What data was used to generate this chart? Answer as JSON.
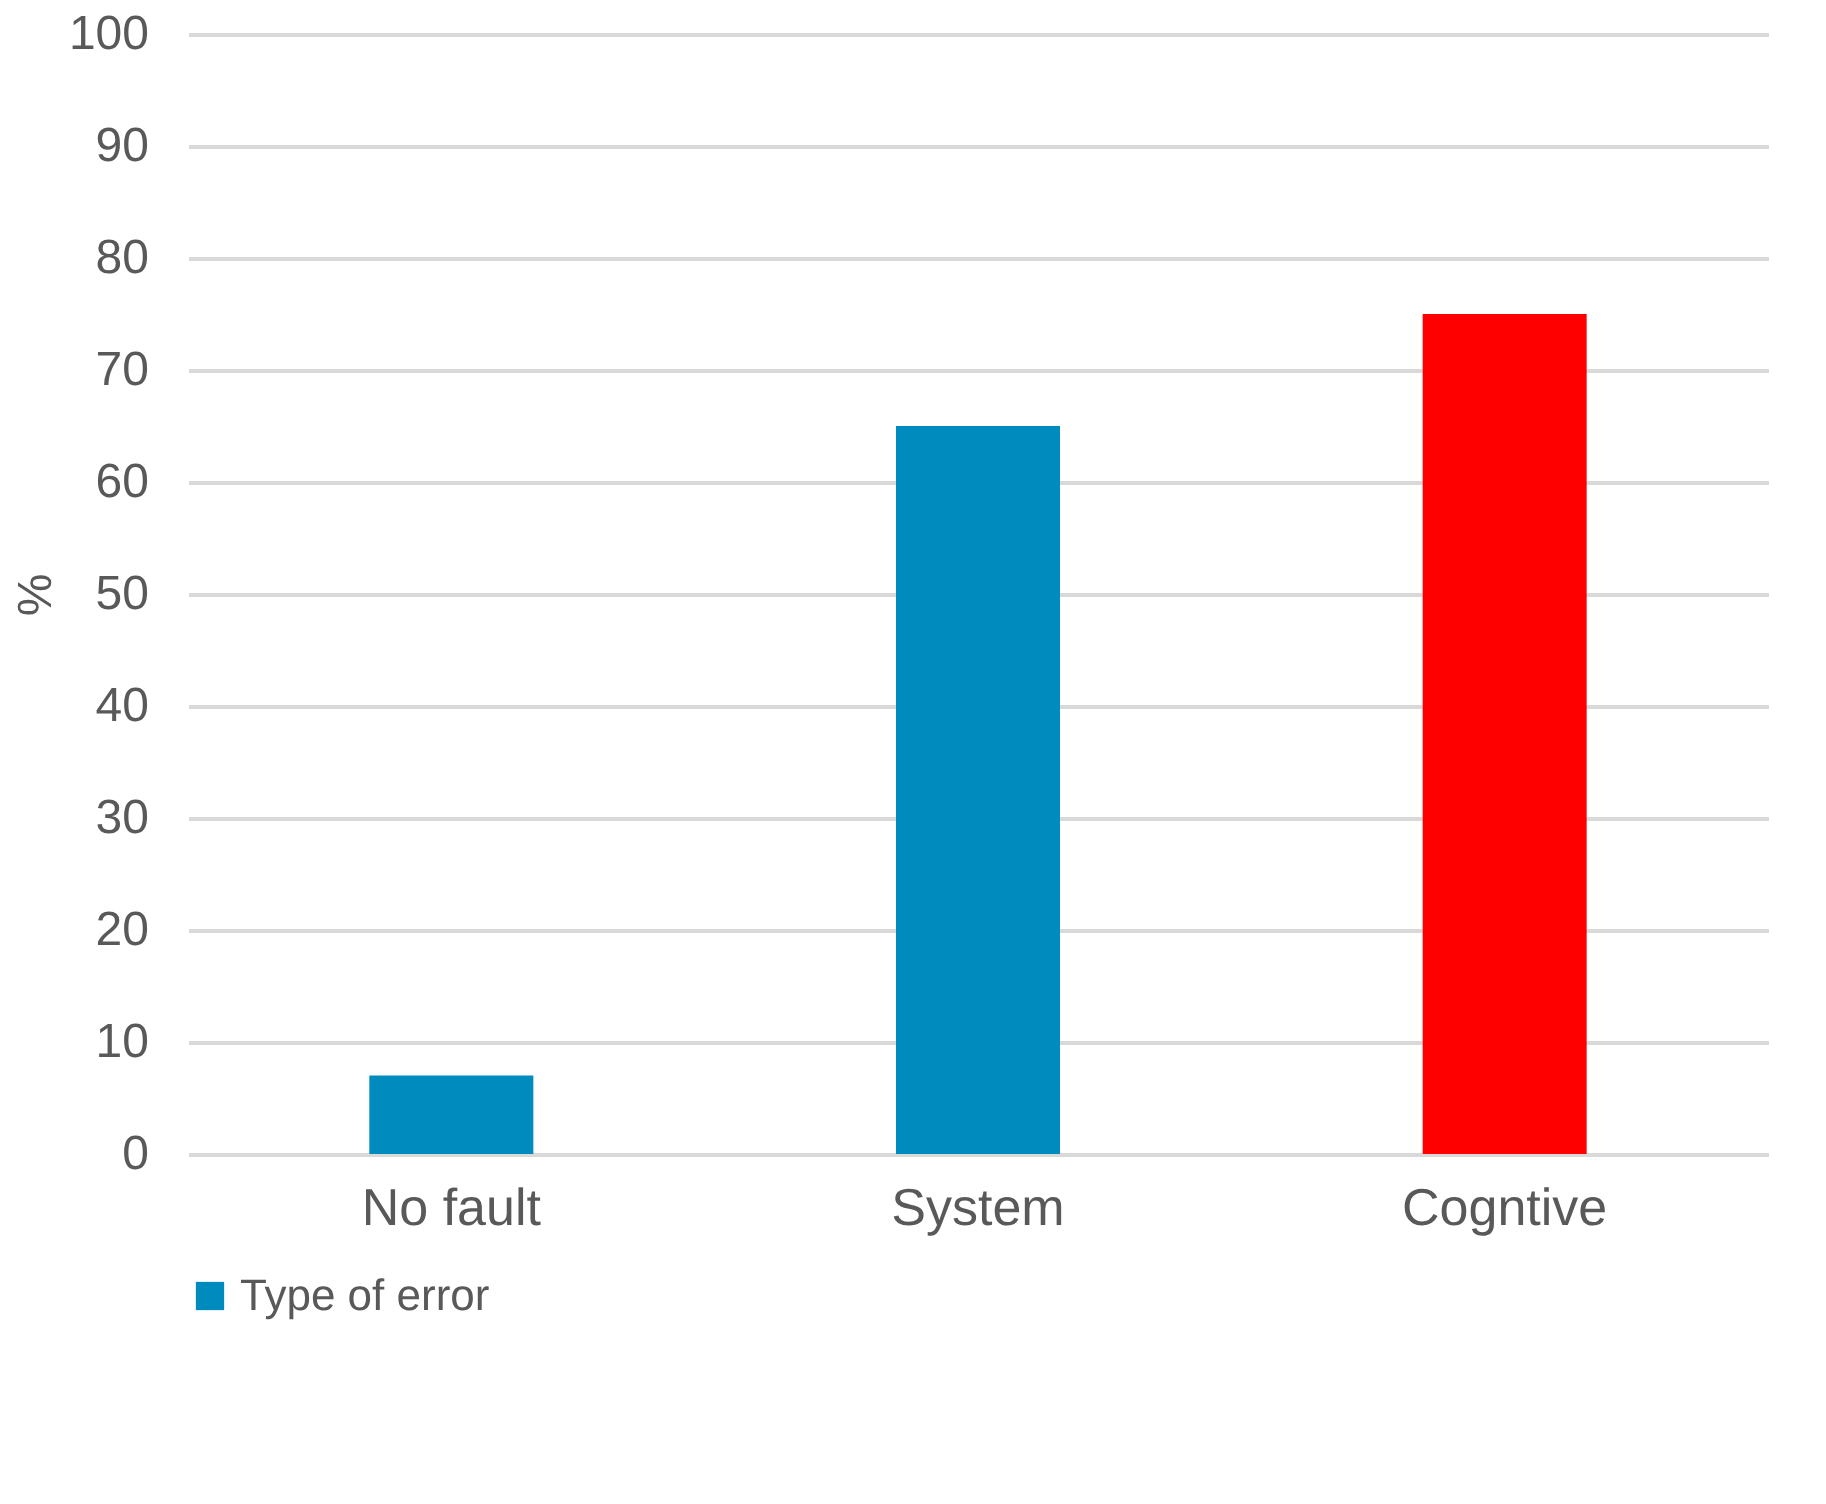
{
  "chart_data": {
    "type": "bar",
    "ylabel": "%",
    "categories": [
      "No fault",
      "System",
      "Cogntive"
    ],
    "series": [
      {
        "name": "Type of error",
        "color": "#008bbf",
        "colors": [
          "#008bbf",
          "#008bbf",
          "#ff0000"
        ],
        "values": [
          7,
          65,
          75
        ]
      }
    ],
    "ylim": [
      0,
      100
    ],
    "yticks": [
      0,
      10,
      20,
      30,
      40,
      50,
      60,
      70,
      80,
      90,
      100
    ],
    "grid": "y",
    "legend": "bottom"
  }
}
